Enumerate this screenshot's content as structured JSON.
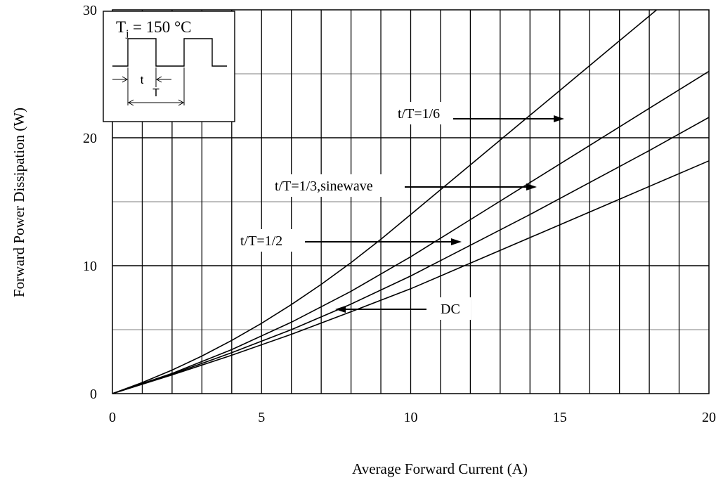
{
  "chart_data": {
    "type": "line",
    "xlabel": "Average Forward Current (A)",
    "ylabel": "Forward Power Dissipation (W)",
    "xlim": [
      0,
      20
    ],
    "ylim": [
      0,
      30
    ],
    "x_ticks": [
      "0",
      "5",
      "10",
      "15",
      "20"
    ],
    "y_ticks": [
      "0",
      "10",
      "20",
      "30"
    ],
    "grid": true,
    "series": [
      {
        "name": "t/T=1/6",
        "x": [
          0,
          1,
          2,
          3,
          4,
          5,
          6,
          7,
          8,
          9,
          10,
          11,
          12,
          13,
          14,
          15,
          16,
          17,
          18,
          19,
          20
        ],
        "y": [
          0,
          0.86,
          1.84,
          2.94,
          4.16,
          5.5,
          6.96,
          8.54,
          10.24,
          12.06,
          14.0,
          15.94,
          17.88,
          19.82,
          21.76,
          23.7,
          25.64,
          27.58,
          29.52,
          31.46,
          33.4
        ]
      },
      {
        "name": "t/T=1/3,sinewave",
        "x": [
          0,
          2,
          4,
          6,
          8,
          10,
          12,
          14,
          16,
          18,
          20
        ],
        "y": [
          0,
          1.58,
          3.44,
          5.58,
          8.0,
          10.7,
          13.6,
          16.5,
          19.4,
          22.3,
          25.2
        ]
      },
      {
        "name": "t/T=1/2",
        "x": [
          0,
          2,
          4,
          6,
          8,
          10,
          12,
          14,
          16,
          18,
          20
        ],
        "y": [
          0,
          1.52,
          3.2,
          5.0,
          7.0,
          9.2,
          11.6,
          14.0,
          16.5,
          19.0,
          21.6
        ]
      },
      {
        "name": "DC",
        "x": [
          0,
          2,
          4,
          6,
          8,
          10,
          12,
          14,
          16,
          18,
          20
        ],
        "y": [
          0,
          1.46,
          3.0,
          4.64,
          6.4,
          8.2,
          10.2,
          12.2,
          14.2,
          16.2,
          18.2
        ]
      }
    ],
    "annotations": {
      "sixth": "t/T=1/6",
      "third": "t/T=1/3,sinewave",
      "half": "t/T=1/2",
      "dc": "DC"
    },
    "inset": {
      "t_label": "t",
      "T_label": "T"
    }
  }
}
